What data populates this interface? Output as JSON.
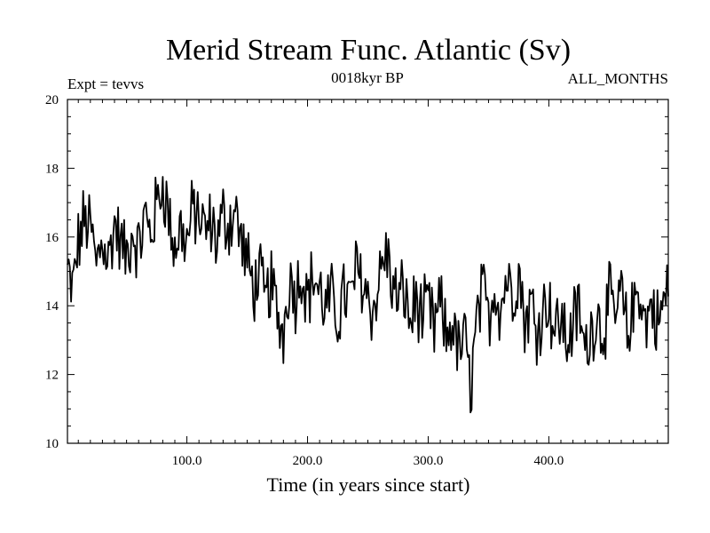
{
  "chart_data": {
    "type": "line",
    "title": "Merid Stream Func. Atlantic (Sv)",
    "subtitle_left": "Expt = tevvs",
    "subtitle_center": "0018kyr BP",
    "subtitle_right": "ALL_MONTHS",
    "xlabel": "Time (in years since start)",
    "ylabel": "",
    "xlim": [
      1,
      499
    ],
    "ylim": [
      10,
      20
    ],
    "x_ticks": [
      100,
      200,
      300,
      400
    ],
    "x_tick_labels": [
      "100.0",
      "200.0",
      "300.0",
      "400.0"
    ],
    "y_ticks": [
      10,
      12,
      14,
      16,
      18,
      20
    ],
    "y_tick_labels": [
      "10",
      "12",
      "14",
      "16",
      "18",
      "20"
    ],
    "grid": false,
    "series": [
      {
        "name": "Merid Stream Func. Atlantic",
        "color": "#000000",
        "anchors": [
          [
            1,
            15.0
          ],
          [
            5,
            14.4
          ],
          [
            10,
            15.8
          ],
          [
            15,
            16.5
          ],
          [
            20,
            16.3
          ],
          [
            25,
            15.2
          ],
          [
            30,
            16.0
          ],
          [
            35,
            15.3
          ],
          [
            40,
            16.4
          ],
          [
            45,
            15.8
          ],
          [
            50,
            15.4
          ],
          [
            55,
            16.2
          ],
          [
            60,
            15.6
          ],
          [
            65,
            16.6
          ],
          [
            70,
            16.1
          ],
          [
            75,
            16.9
          ],
          [
            80,
            17.6
          ],
          [
            85,
            16.6
          ],
          [
            90,
            15.6
          ],
          [
            95,
            16.3
          ],
          [
            100,
            15.8
          ],
          [
            105,
            16.8
          ],
          [
            110,
            16.6
          ],
          [
            115,
            16.1
          ],
          [
            120,
            16.4
          ],
          [
            125,
            15.9
          ],
          [
            130,
            16.6
          ],
          [
            135,
            16.4
          ],
          [
            140,
            16.8
          ],
          [
            145,
            15.9
          ],
          [
            150,
            15.3
          ],
          [
            155,
            14.5
          ],
          [
            160,
            14.9
          ],
          [
            165,
            14.1
          ],
          [
            170,
            14.7
          ],
          [
            175,
            13.7
          ],
          [
            180,
            13.2
          ],
          [
            185,
            14.9
          ],
          [
            190,
            14.3
          ],
          [
            195,
            15.1
          ],
          [
            200,
            14.2
          ],
          [
            205,
            14.9
          ],
          [
            210,
            14.4
          ],
          [
            215,
            13.9
          ],
          [
            220,
            14.2
          ],
          [
            225,
            13.6
          ],
          [
            230,
            14.4
          ],
          [
            235,
            14.1
          ],
          [
            240,
            15.0
          ],
          [
            245,
            14.8
          ],
          [
            250,
            14.3
          ],
          [
            255,
            13.8
          ],
          [
            260,
            14.9
          ],
          [
            265,
            15.6
          ],
          [
            270,
            14.6
          ],
          [
            275,
            14.1
          ],
          [
            280,
            14.5
          ],
          [
            285,
            13.5
          ],
          [
            290,
            14.2
          ],
          [
            295,
            13.6
          ],
          [
            300,
            14.0
          ],
          [
            305,
            13.3
          ],
          [
            310,
            14.1
          ],
          [
            315,
            13.0
          ],
          [
            320,
            13.6
          ],
          [
            325,
            12.6
          ],
          [
            330,
            13.1
          ],
          [
            335,
            11.6
          ],
          [
            340,
            13.4
          ],
          [
            345,
            14.4
          ],
          [
            350,
            13.6
          ],
          [
            355,
            14.6
          ],
          [
            360,
            13.9
          ],
          [
            365,
            14.9
          ],
          [
            370,
            14.3
          ],
          [
            375,
            15.1
          ],
          [
            380,
            13.5
          ],
          [
            385,
            14.1
          ],
          [
            390,
            13.4
          ],
          [
            395,
            13.9
          ],
          [
            400,
            14.2
          ],
          [
            405,
            13.2
          ],
          [
            410,
            13.7
          ],
          [
            415,
            12.9
          ],
          [
            420,
            13.5
          ],
          [
            425,
            13.9
          ],
          [
            430,
            12.6
          ],
          [
            435,
            13.3
          ],
          [
            440,
            13.8
          ],
          [
            445,
            13.2
          ],
          [
            450,
            14.2
          ],
          [
            455,
            13.6
          ],
          [
            460,
            14.4
          ],
          [
            465,
            13.1
          ],
          [
            470,
            13.9
          ],
          [
            475,
            14.6
          ],
          [
            480,
            13.4
          ],
          [
            485,
            14.1
          ],
          [
            490,
            13.5
          ],
          [
            495,
            14.0
          ],
          [
            499,
            14.6
          ]
        ]
      }
    ]
  }
}
